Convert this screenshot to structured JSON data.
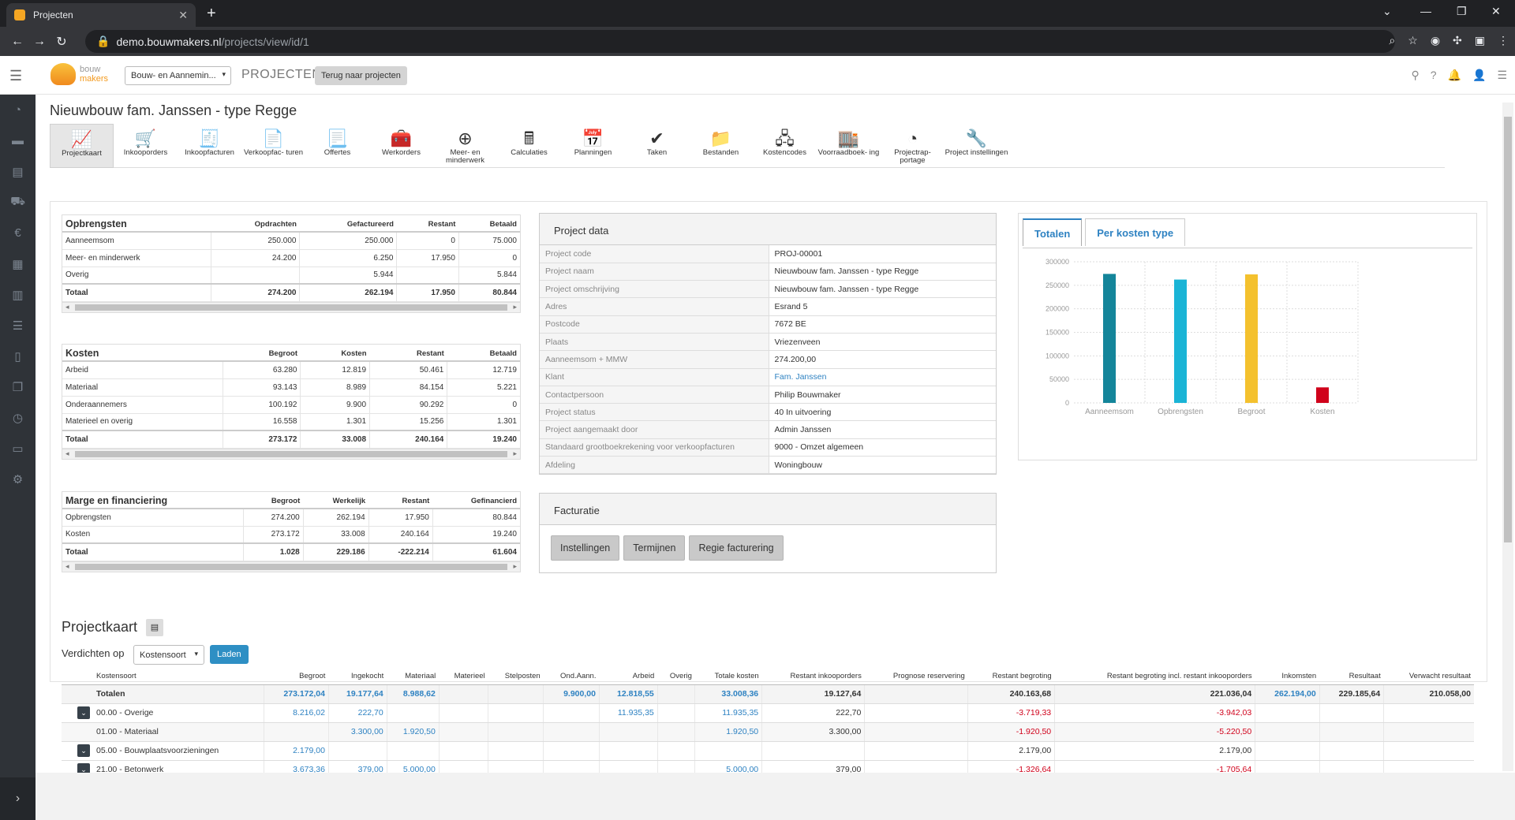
{
  "browser": {
    "tab_title": "Projecten",
    "url_host": "demo.bouwmakers.nl",
    "url_path": "/projects/view/id/1"
  },
  "header": {
    "logo_line1": "bouw",
    "logo_line2": "makers",
    "company_select": "Bouw- en Aannemin...",
    "module_title": "PROJECTEN",
    "back_button": "Terug naar projecten"
  },
  "page": {
    "title": "Nieuwbouw fam. Janssen - type Regge"
  },
  "toolbar": [
    {
      "icon": "chart-icon",
      "glyph": "📈",
      "label": "Projectkaart",
      "active": true
    },
    {
      "icon": "cart-icon",
      "glyph": "🛒",
      "label": "Inkooporders"
    },
    {
      "icon": "invoice-icon",
      "glyph": "🧾",
      "label": "Inkoopfacturen"
    },
    {
      "icon": "invoice-out-icon",
      "glyph": "📄",
      "label": "Verkoopfac- turen"
    },
    {
      "icon": "offer-icon",
      "glyph": "📃",
      "label": "Offertes"
    },
    {
      "icon": "toolbox-icon",
      "glyph": "🧰",
      "label": "Werkorders"
    },
    {
      "icon": "plus-circle-icon",
      "glyph": "⊕",
      "label": "Meer- en minderwerk"
    },
    {
      "icon": "calculator-icon",
      "glyph": "🖩",
      "label": "Calculaties"
    },
    {
      "icon": "calendar-icon",
      "glyph": "📅",
      "label": "Planningen"
    },
    {
      "icon": "check-icon",
      "glyph": "✔",
      "label": "Taken"
    },
    {
      "icon": "file-icon",
      "glyph": "📁",
      "label": "Bestanden"
    },
    {
      "icon": "sitemap-icon",
      "glyph": "🖧",
      "label": "Kostencodes"
    },
    {
      "icon": "warehouse-icon",
      "glyph": "🏬",
      "label": "Voorraadboek- ing"
    },
    {
      "icon": "pie-chart-icon",
      "glyph": "◔",
      "label": "Projectrap- portage"
    },
    {
      "icon": "wrench-icon",
      "glyph": "🔧",
      "label": "Project instellingen"
    }
  ],
  "opbrengsten": {
    "headers": [
      "Opbrengsten",
      "Opdrachten",
      "Gefactureerd",
      "Restant",
      "Betaald"
    ],
    "rows": [
      [
        "Aanneemsom",
        "250.000",
        "250.000",
        "0",
        "75.000"
      ],
      [
        "Meer- en minderwerk",
        "24.200",
        "6.250",
        "17.950",
        "0"
      ],
      [
        "Overig",
        "",
        "5.944",
        "",
        "5.844"
      ]
    ],
    "total": [
      "Totaal",
      "274.200",
      "262.194",
      "17.950",
      "80.844"
    ]
  },
  "kosten": {
    "headers": [
      "Kosten",
      "Begroot",
      "Kosten",
      "Restant",
      "Betaald"
    ],
    "rows": [
      [
        "Arbeid",
        "63.280",
        "12.819",
        "50.461",
        "12.719"
      ],
      [
        "Materiaal",
        "93.143",
        "8.989",
        "84.154",
        "5.221"
      ],
      [
        "Onderaannemers",
        "100.192",
        "9.900",
        "90.292",
        "0"
      ],
      [
        "Materieel en overig",
        "16.558",
        "1.301",
        "15.256",
        "1.301"
      ]
    ],
    "total": [
      "Totaal",
      "273.172",
      "33.008",
      "240.164",
      "19.240"
    ]
  },
  "marge": {
    "headers": [
      "Marge en financiering",
      "Begroot",
      "Werkelijk",
      "Restant",
      "Gefinancierd"
    ],
    "rows": [
      [
        "Opbrengsten",
        "274.200",
        "262.194",
        "17.950",
        "80.844"
      ],
      [
        "Kosten",
        "273.172",
        "33.008",
        "240.164",
        "19.240"
      ]
    ],
    "total": [
      "Totaal",
      "1.028",
      "229.186",
      "-222.214",
      "61.604"
    ]
  },
  "project_data": {
    "title": "Project data",
    "rows": [
      [
        "Project code",
        "PROJ-00001"
      ],
      [
        "Project naam",
        "Nieuwbouw fam. Janssen - type Regge"
      ],
      [
        "Project omschrijving",
        "Nieuwbouw fam. Janssen - type Regge"
      ],
      [
        "Adres",
        "Esrand 5"
      ],
      [
        "Postcode",
        "7672 BE"
      ],
      [
        "Plaats",
        "Vriezenveen"
      ],
      [
        "Aanneemsom + MMW",
        "274.200,00"
      ],
      [
        "Klant",
        "Fam. Janssen"
      ],
      [
        "Contactpersoon",
        "Philip Bouwmaker"
      ],
      [
        "Project status",
        "40 In uitvoering"
      ],
      [
        "Project aangemaakt door",
        "Admin Janssen"
      ],
      [
        "Standaard grootboekrekening voor verkoopfacturen",
        "9000 - Omzet algemeen"
      ],
      [
        "Afdeling",
        "Woningbouw"
      ]
    ]
  },
  "facturatie": {
    "title": "Facturatie",
    "buttons": [
      "Instellingen",
      "Termijnen",
      "Regie facturering"
    ]
  },
  "chart_tabs": [
    "Totalen",
    "Per kosten type"
  ],
  "chart_data": {
    "type": "bar",
    "categories": [
      "Aanneemsom",
      "Opbrengsten",
      "Begroot",
      "Kosten"
    ],
    "values": [
      274200,
      262194,
      273172,
      33008
    ],
    "colors": [
      "#14859a",
      "#1ab4d6",
      "#f4c12e",
      "#d0021b"
    ],
    "ylim": [
      0,
      300000
    ],
    "yticks": [
      "300000",
      "250000",
      "200000",
      "150000",
      "100000",
      "50000",
      "0"
    ],
    "grid": true
  },
  "projectkaart": {
    "title": "Projectkaart",
    "verdichten_label": "Verdichten op",
    "verdichten_value": "Kostensoort",
    "laden": "Laden",
    "headers": [
      "Kostensoort",
      "Begroot",
      "Ingekocht",
      "Materiaal",
      "Materieel",
      "Stelposten",
      "Ond.Aann.",
      "Arbeid",
      "Overig",
      "Totale kosten",
      "Restant inkooporders",
      "Prognose reservering",
      "Restant begroting",
      "Restant begroting incl. restant inkooporders",
      "Inkomsten",
      "Resultaat",
      "Verwacht resultaat"
    ],
    "rows": [
      {
        "type": "tot",
        "cells": [
          "Totalen",
          "273.172,04",
          "19.177,64",
          "8.988,62",
          "",
          "",
          "9.900,00",
          "12.818,55",
          "",
          "33.008,36",
          "19.127,64",
          "",
          "240.163,68",
          "221.036,04",
          "262.194,00",
          "229.185,64",
          "210.058,00"
        ]
      },
      {
        "type": "grp",
        "cells": [
          "00.00 - Overige",
          "8.216,02",
          "222,70",
          "",
          "",
          "",
          "",
          "11.935,35",
          "",
          "11.935,35",
          "222,70",
          "",
          "-3.719,33",
          "-3.942,03",
          "",
          "",
          ""
        ]
      },
      {
        "type": "sub",
        "cells": [
          "01.00 - Materiaal",
          "",
          "3.300,00",
          "1.920,50",
          "",
          "",
          "",
          "",
          "",
          "1.920,50",
          "3.300,00",
          "",
          "-1.920,50",
          "-5.220,50",
          "",
          "",
          ""
        ]
      },
      {
        "type": "grp",
        "cells": [
          "05.00 - Bouwplaatsvoorzieningen",
          "2.179,00",
          "",
          "",
          "",
          "",
          "",
          "",
          "",
          "",
          "",
          "",
          "2.179,00",
          "2.179,00",
          "",
          "",
          ""
        ]
      },
      {
        "type": "grp",
        "cells": [
          "21.00 - Betonwerk",
          "3.673,36",
          "379,00",
          "5.000,00",
          "",
          "",
          "",
          "",
          "",
          "5.000,00",
          "379,00",
          "",
          "-1.326,64",
          "-1.705,64",
          "",
          "",
          ""
        ]
      }
    ]
  }
}
